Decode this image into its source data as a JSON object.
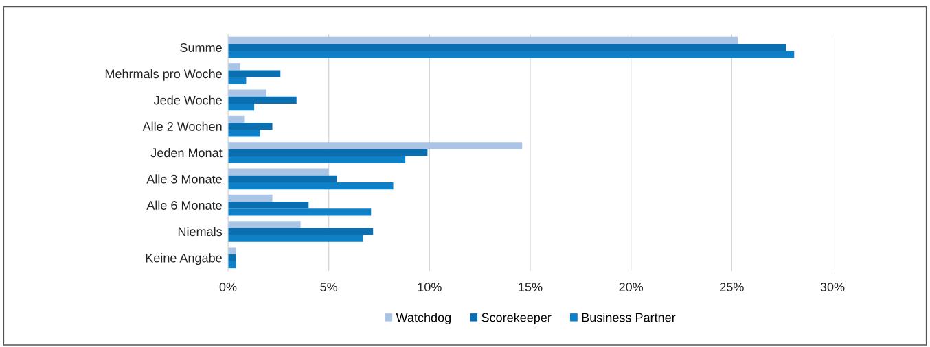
{
  "chart_data": {
    "type": "bar",
    "orientation": "horizontal",
    "categories": [
      "Summe",
      "Mehrmals pro Woche",
      "Jede Woche",
      "Alle 2 Wochen",
      "Jeden Monat",
      "Alle 3 Monate",
      "Alle 6 Monate",
      "Niemals",
      "Keine Angabe"
    ],
    "series": [
      {
        "name": "Watchdog",
        "color": "#a9c4e4",
        "values": [
          25.3,
          0.6,
          1.9,
          0.8,
          14.6,
          5.0,
          2.2,
          3.6,
          0.4
        ]
      },
      {
        "name": "Scorekeeper",
        "color": "#0a6fb0",
        "values": [
          27.7,
          2.6,
          3.4,
          2.2,
          9.9,
          5.4,
          4.0,
          7.2,
          0.4
        ]
      },
      {
        "name": "Business Partner",
        "color": "#0e80c8",
        "values": [
          28.1,
          0.9,
          1.3,
          1.6,
          8.8,
          8.2,
          7.1,
          6.7,
          0.4
        ]
      }
    ],
    "xlim": [
      0,
      30
    ],
    "xticks": [
      {
        "value": 0,
        "label": "0%"
      },
      {
        "value": 5,
        "label": "5%"
      },
      {
        "value": 10,
        "label": "10%"
      },
      {
        "value": 15,
        "label": "15%"
      },
      {
        "value": 20,
        "label": "20%"
      },
      {
        "value": 25,
        "label": "25%"
      },
      {
        "value": 30,
        "label": "30%"
      }
    ],
    "grid": "x",
    "legend": "bottom"
  }
}
